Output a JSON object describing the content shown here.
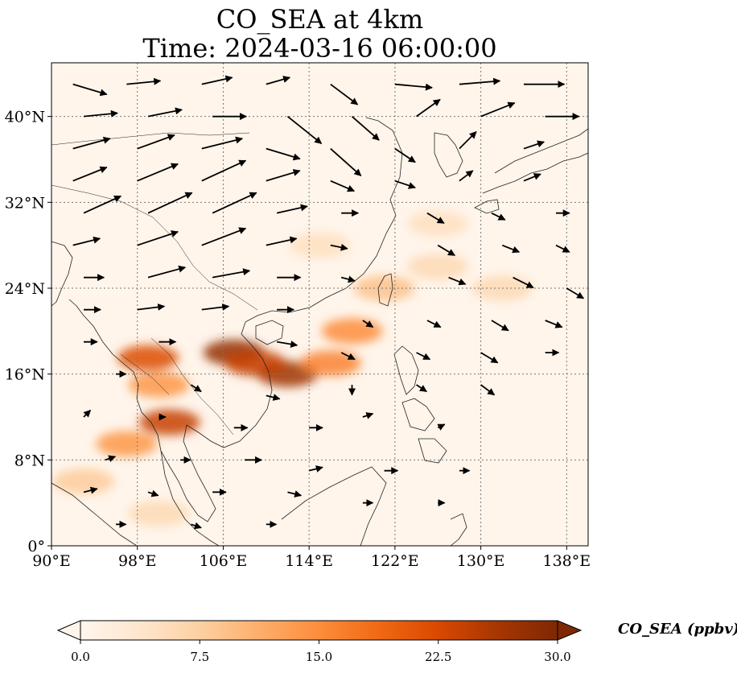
{
  "title": {
    "line1": "CO_SEA at 4km",
    "line2": "Time: 2024-03-16 06:00:00"
  },
  "map": {
    "extent_lon": [
      90,
      140
    ],
    "extent_lat": [
      0,
      45
    ],
    "lon_ticks": [
      {
        "value": 90,
        "label": "90°E"
      },
      {
        "value": 98,
        "label": "98°E"
      },
      {
        "value": 106,
        "label": "106°E"
      },
      {
        "value": 114,
        "label": "114°E"
      },
      {
        "value": 122,
        "label": "122°E"
      },
      {
        "value": 130,
        "label": "130°E"
      },
      {
        "value": 138,
        "label": "138°E"
      }
    ],
    "lat_ticks": [
      {
        "value": 0,
        "label": "0°"
      },
      {
        "value": 8,
        "label": "8°N"
      },
      {
        "value": 16,
        "label": "16°N"
      },
      {
        "value": 24,
        "label": "24°N"
      },
      {
        "value": 32,
        "label": "32°N"
      },
      {
        "value": 40,
        "label": "40°N"
      }
    ],
    "gridlines": true,
    "plumes": [
      {
        "lon": 107,
        "lat": 18,
        "value": 28
      },
      {
        "lon": 112,
        "lat": 16,
        "value": 27
      },
      {
        "lon": 109,
        "lat": 17,
        "value": 24
      },
      {
        "lon": 116,
        "lat": 17,
        "value": 16
      },
      {
        "lon": 118,
        "lat": 20,
        "value": 15
      },
      {
        "lon": 99,
        "lat": 17.5,
        "value": 22
      },
      {
        "lon": 101,
        "lat": 11.5,
        "value": 24
      },
      {
        "lon": 100,
        "lat": 15,
        "value": 14
      },
      {
        "lon": 97,
        "lat": 9.5,
        "value": 14
      },
      {
        "lon": 93,
        "lat": 6,
        "value": 8
      },
      {
        "lon": 121,
        "lat": 24,
        "value": 9
      },
      {
        "lon": 126,
        "lat": 26,
        "value": 6
      },
      {
        "lon": 132,
        "lat": 24,
        "value": 6
      },
      {
        "lon": 126,
        "lat": 30,
        "value": 5
      },
      {
        "lon": 115,
        "lat": 28,
        "value": 5
      },
      {
        "lon": 100,
        "lat": 3,
        "value": 6
      }
    ]
  },
  "wind": {
    "vectors": [
      {
        "lon": 92,
        "lat": 43,
        "u": 1,
        "v": -0.3
      },
      {
        "lon": 97,
        "lat": 43,
        "u": 1,
        "v": 0.1
      },
      {
        "lon": 104,
        "lat": 43,
        "u": 0.9,
        "v": 0.2
      },
      {
        "lon": 110,
        "lat": 43,
        "u": 0.7,
        "v": 0.2
      },
      {
        "lon": 116,
        "lat": 43,
        "u": 0.8,
        "v": -0.6
      },
      {
        "lon": 122,
        "lat": 43,
        "u": 1.1,
        "v": -0.1
      },
      {
        "lon": 128,
        "lat": 43,
        "u": 1.2,
        "v": 0.1
      },
      {
        "lon": 134,
        "lat": 43,
        "u": 1.2,
        "v": 0
      },
      {
        "lon": 93,
        "lat": 40,
        "u": 1,
        "v": 0.1
      },
      {
        "lon": 99,
        "lat": 40,
        "u": 1,
        "v": 0.2
      },
      {
        "lon": 105,
        "lat": 40,
        "u": 1,
        "v": 0
      },
      {
        "lon": 112,
        "lat": 40,
        "u": 1,
        "v": -0.8
      },
      {
        "lon": 118,
        "lat": 40,
        "u": 0.8,
        "v": -0.7
      },
      {
        "lon": 124,
        "lat": 40,
        "u": 0.7,
        "v": 0.5
      },
      {
        "lon": 130,
        "lat": 40,
        "u": 1,
        "v": 0.4
      },
      {
        "lon": 136,
        "lat": 40,
        "u": 1,
        "v": 0
      },
      {
        "lon": 92,
        "lat": 37,
        "u": 1.1,
        "v": 0.3
      },
      {
        "lon": 98,
        "lat": 37,
        "u": 1.1,
        "v": 0.4
      },
      {
        "lon": 104,
        "lat": 37,
        "u": 1.2,
        "v": 0.3
      },
      {
        "lon": 110,
        "lat": 37,
        "u": 1,
        "v": -0.3
      },
      {
        "lon": 116,
        "lat": 37,
        "u": 0.9,
        "v": -0.8
      },
      {
        "lon": 122,
        "lat": 37,
        "u": 0.6,
        "v": -0.4
      },
      {
        "lon": 128,
        "lat": 37,
        "u": 0.5,
        "v": 0.5
      },
      {
        "lon": 134,
        "lat": 37,
        "u": 0.6,
        "v": 0.2
      },
      {
        "lon": 92,
        "lat": 34,
        "u": 1,
        "v": 0.4
      },
      {
        "lon": 98,
        "lat": 34,
        "u": 1.2,
        "v": 0.5
      },
      {
        "lon": 104,
        "lat": 34,
        "u": 1.3,
        "v": 0.6
      },
      {
        "lon": 110,
        "lat": 34,
        "u": 1,
        "v": 0.3
      },
      {
        "lon": 116,
        "lat": 34,
        "u": 0.7,
        "v": -0.3
      },
      {
        "lon": 122,
        "lat": 34,
        "u": 0.6,
        "v": -0.2
      },
      {
        "lon": 128,
        "lat": 34,
        "u": 0.4,
        "v": 0.3
      },
      {
        "lon": 134,
        "lat": 34,
        "u": 0.5,
        "v": 0.2
      },
      {
        "lon": 93,
        "lat": 31,
        "u": 1.1,
        "v": 0.5
      },
      {
        "lon": 99,
        "lat": 31,
        "u": 1.3,
        "v": 0.6
      },
      {
        "lon": 105,
        "lat": 31,
        "u": 1.3,
        "v": 0.6
      },
      {
        "lon": 111,
        "lat": 31,
        "u": 0.9,
        "v": 0.2
      },
      {
        "lon": 117,
        "lat": 31,
        "u": 0.5,
        "v": 0
      },
      {
        "lon": 125,
        "lat": 31,
        "u": 0.5,
        "v": -0.3
      },
      {
        "lon": 131,
        "lat": 31,
        "u": 0.4,
        "v": -0.2
      },
      {
        "lon": 137,
        "lat": 31,
        "u": 0.4,
        "v": 0
      },
      {
        "lon": 92,
        "lat": 28,
        "u": 0.8,
        "v": 0.2
      },
      {
        "lon": 98,
        "lat": 28,
        "u": 1.2,
        "v": 0.4
      },
      {
        "lon": 104,
        "lat": 28,
        "u": 1.3,
        "v": 0.5
      },
      {
        "lon": 110,
        "lat": 28,
        "u": 0.9,
        "v": 0.2
      },
      {
        "lon": 116,
        "lat": 28,
        "u": 0.5,
        "v": -0.1
      },
      {
        "lon": 126,
        "lat": 28,
        "u": 0.5,
        "v": -0.3
      },
      {
        "lon": 132,
        "lat": 28,
        "u": 0.5,
        "v": -0.2
      },
      {
        "lon": 137,
        "lat": 28,
        "u": 0.4,
        "v": -0.2
      },
      {
        "lon": 93,
        "lat": 25,
        "u": 0.6,
        "v": 0
      },
      {
        "lon": 99,
        "lat": 25,
        "u": 1.1,
        "v": 0.3
      },
      {
        "lon": 105,
        "lat": 25,
        "u": 1.1,
        "v": 0.2
      },
      {
        "lon": 111,
        "lat": 25,
        "u": 0.7,
        "v": 0
      },
      {
        "lon": 117,
        "lat": 25,
        "u": 0.4,
        "v": -0.1
      },
      {
        "lon": 127,
        "lat": 25,
        "u": 0.5,
        "v": -0.2
      },
      {
        "lon": 133,
        "lat": 25,
        "u": 0.6,
        "v": -0.3
      },
      {
        "lon": 138,
        "lat": 24,
        "u": 0.5,
        "v": -0.3
      },
      {
        "lon": 93,
        "lat": 22,
        "u": 0.5,
        "v": 0
      },
      {
        "lon": 98,
        "lat": 22,
        "u": 0.8,
        "v": 0.1
      },
      {
        "lon": 104,
        "lat": 22,
        "u": 0.8,
        "v": 0.1
      },
      {
        "lon": 111,
        "lat": 22,
        "u": 0.5,
        "v": 0
      },
      {
        "lon": 119,
        "lat": 21,
        "u": 0.3,
        "v": -0.2
      },
      {
        "lon": 125,
        "lat": 21,
        "u": 0.4,
        "v": -0.2
      },
      {
        "lon": 131,
        "lat": 21,
        "u": 0.5,
        "v": -0.3
      },
      {
        "lon": 136,
        "lat": 21,
        "u": 0.5,
        "v": -0.2
      },
      {
        "lon": 93,
        "lat": 19,
        "u": 0.4,
        "v": 0
      },
      {
        "lon": 100,
        "lat": 19,
        "u": 0.5,
        "v": 0
      },
      {
        "lon": 111,
        "lat": 19,
        "u": 0.6,
        "v": -0.1
      },
      {
        "lon": 117,
        "lat": 18,
        "u": 0.4,
        "v": -0.2
      },
      {
        "lon": 124,
        "lat": 18,
        "u": 0.4,
        "v": -0.2
      },
      {
        "lon": 130,
        "lat": 18,
        "u": 0.5,
        "v": -0.3
      },
      {
        "lon": 136,
        "lat": 18,
        "u": 0.4,
        "v": 0
      },
      {
        "lon": 96,
        "lat": 16,
        "u": 0.3,
        "v": 0
      },
      {
        "lon": 103,
        "lat": 15,
        "u": 0.3,
        "v": -0.2
      },
      {
        "lon": 110,
        "lat": 14,
        "u": 0.4,
        "v": -0.1
      },
      {
        "lon": 118,
        "lat": 15,
        "u": 0,
        "v": -0.3
      },
      {
        "lon": 124,
        "lat": 15,
        "u": 0.3,
        "v": -0.2
      },
      {
        "lon": 130,
        "lat": 15,
        "u": 0.4,
        "v": -0.3
      },
      {
        "lon": 93,
        "lat": 12,
        "u": 0.2,
        "v": 0.2
      },
      {
        "lon": 100,
        "lat": 12,
        "u": 0.2,
        "v": 0
      },
      {
        "lon": 107,
        "lat": 11,
        "u": 0.4,
        "v": 0
      },
      {
        "lon": 114,
        "lat": 11,
        "u": 0.4,
        "v": 0
      },
      {
        "lon": 119,
        "lat": 12,
        "u": 0.3,
        "v": 0.1
      },
      {
        "lon": 126,
        "lat": 11,
        "u": 0.2,
        "v": 0.1
      },
      {
        "lon": 95,
        "lat": 8,
        "u": 0.3,
        "v": 0.1
      },
      {
        "lon": 102,
        "lat": 8,
        "u": 0.3,
        "v": 0
      },
      {
        "lon": 108,
        "lat": 8,
        "u": 0.5,
        "v": 0
      },
      {
        "lon": 114,
        "lat": 7,
        "u": 0.4,
        "v": 0.1
      },
      {
        "lon": 121,
        "lat": 7,
        "u": 0.4,
        "v": 0
      },
      {
        "lon": 128,
        "lat": 7,
        "u": 0.3,
        "v": 0
      },
      {
        "lon": 93,
        "lat": 5,
        "u": 0.4,
        "v": 0.1
      },
      {
        "lon": 99,
        "lat": 5,
        "u": 0.3,
        "v": -0.1
      },
      {
        "lon": 105,
        "lat": 5,
        "u": 0.4,
        "v": 0
      },
      {
        "lon": 112,
        "lat": 5,
        "u": 0.4,
        "v": -0.1
      },
      {
        "lon": 119,
        "lat": 4,
        "u": 0.3,
        "v": 0
      },
      {
        "lon": 126,
        "lat": 4,
        "u": 0.2,
        "v": 0
      },
      {
        "lon": 96,
        "lat": 2,
        "u": 0.3,
        "v": 0
      },
      {
        "lon": 103,
        "lat": 2,
        "u": 0.3,
        "v": -0.1
      },
      {
        "lon": 110,
        "lat": 2,
        "u": 0.3,
        "v": 0
      }
    ]
  },
  "colorbar": {
    "label": "CO_SEA (ppbv)",
    "min": 0.0,
    "max": 30.0,
    "ticks": [
      "0.0",
      "7.5",
      "15.0",
      "22.5",
      "30.0"
    ],
    "colors": [
      "#fff5eb",
      "#fee6ce",
      "#fdd0a2",
      "#fdae6b",
      "#fd8d3c",
      "#f16913",
      "#d94801",
      "#a63603",
      "#7f2704"
    ],
    "extend": "both"
  }
}
